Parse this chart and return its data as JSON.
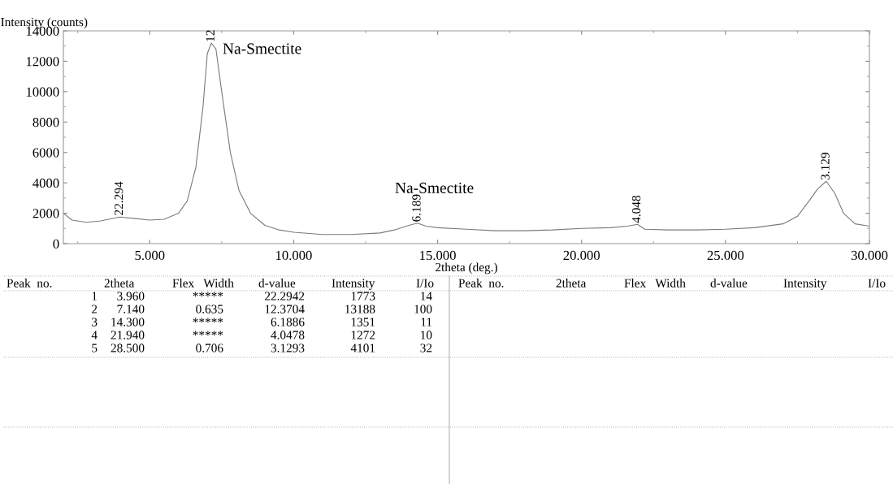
{
  "chart_data": {
    "type": "line",
    "xlabel": "2theta (deg.)",
    "ylabel": "Intensity (counts)",
    "x": [
      2.0,
      2.3,
      2.8,
      3.3,
      3.96,
      4.5,
      5.0,
      5.5,
      6.0,
      6.3,
      6.6,
      6.85,
      7.0,
      7.14,
      7.3,
      7.5,
      7.8,
      8.1,
      8.5,
      9.0,
      9.5,
      10.0,
      11.0,
      12.0,
      13.0,
      13.5,
      14.0,
      14.3,
      14.6,
      15.0,
      16.0,
      17.0,
      18.0,
      19.0,
      20.0,
      21.0,
      21.6,
      21.94,
      22.2,
      23.0,
      24.0,
      25.0,
      26.0,
      27.0,
      27.5,
      27.9,
      28.2,
      28.5,
      28.8,
      29.1,
      29.5,
      30.0
    ],
    "series": [
      {
        "color": "#7a7a7a",
        "values": [
          2000,
          1550,
          1400,
          1500,
          1750,
          1650,
          1550,
          1600,
          2000,
          2800,
          5000,
          9000,
          12500,
          13200,
          12800,
          10000,
          6000,
          3500,
          2000,
          1200,
          900,
          750,
          600,
          600,
          700,
          900,
          1200,
          1350,
          1150,
          1050,
          950,
          850,
          850,
          900,
          1000,
          1050,
          1150,
          1270,
          950,
          900,
          900,
          950,
          1050,
          1300,
          1800,
          2800,
          3600,
          4100,
          3300,
          2000,
          1300,
          1150
        ]
      }
    ],
    "xlim": [
      2.0,
      30.0
    ],
    "ylim": [
      0,
      14000
    ],
    "xticks": [
      {
        "value": 5,
        "label": "5.000"
      },
      {
        "value": 10,
        "label": "10.000"
      },
      {
        "value": 15,
        "label": "15.000"
      },
      {
        "value": 20,
        "label": "20.000"
      },
      {
        "value": 25,
        "label": "25.000"
      },
      {
        "value": 30,
        "label": "30.000"
      }
    ],
    "yticks": [
      0,
      2000,
      4000,
      6000,
      8000,
      10000,
      12000,
      14000
    ],
    "grid": false,
    "marker": "none",
    "line_style": "solid",
    "annotations": [
      {
        "text": "22.294",
        "x": 3.96,
        "y": 1773
      },
      {
        "text": "12",
        "x": 7.14,
        "y": 13188
      },
      {
        "text": "6.189",
        "x": 14.3,
        "y": 1351
      },
      {
        "text": "4.048",
        "x": 21.94,
        "y": 1272
      },
      {
        "text": "3.129",
        "x": 28.5,
        "y": 4101
      },
      {
        "text": "Na-Smectite",
        "x": 7.14,
        "y": 13188
      },
      {
        "text": "Na-Smectite",
        "x": 14.3,
        "y": 1351
      },
      "Peak  no.",
      "2theta",
      "Flex   Width",
      "d-value",
      "Intensity",
      "I/Io",
      "Peak  no.",
      "2theta",
      "Flex   Width",
      "d-value",
      "Intensity",
      "I/Io",
      "1",
      "3.960",
      "*****",
      "22.2942",
      "1773",
      "14",
      "2",
      "7.140",
      "0.635",
      "12.3704",
      "13188",
      "100",
      "3",
      "14.300",
      "*****",
      "6.1886",
      "1351",
      "11",
      "4",
      "21.940",
      "*****",
      "4.0478",
      "1272",
      "10",
      "5",
      "28.500",
      "0.706",
      "3.1293",
      "4101",
      "32"
    ]
  }
}
